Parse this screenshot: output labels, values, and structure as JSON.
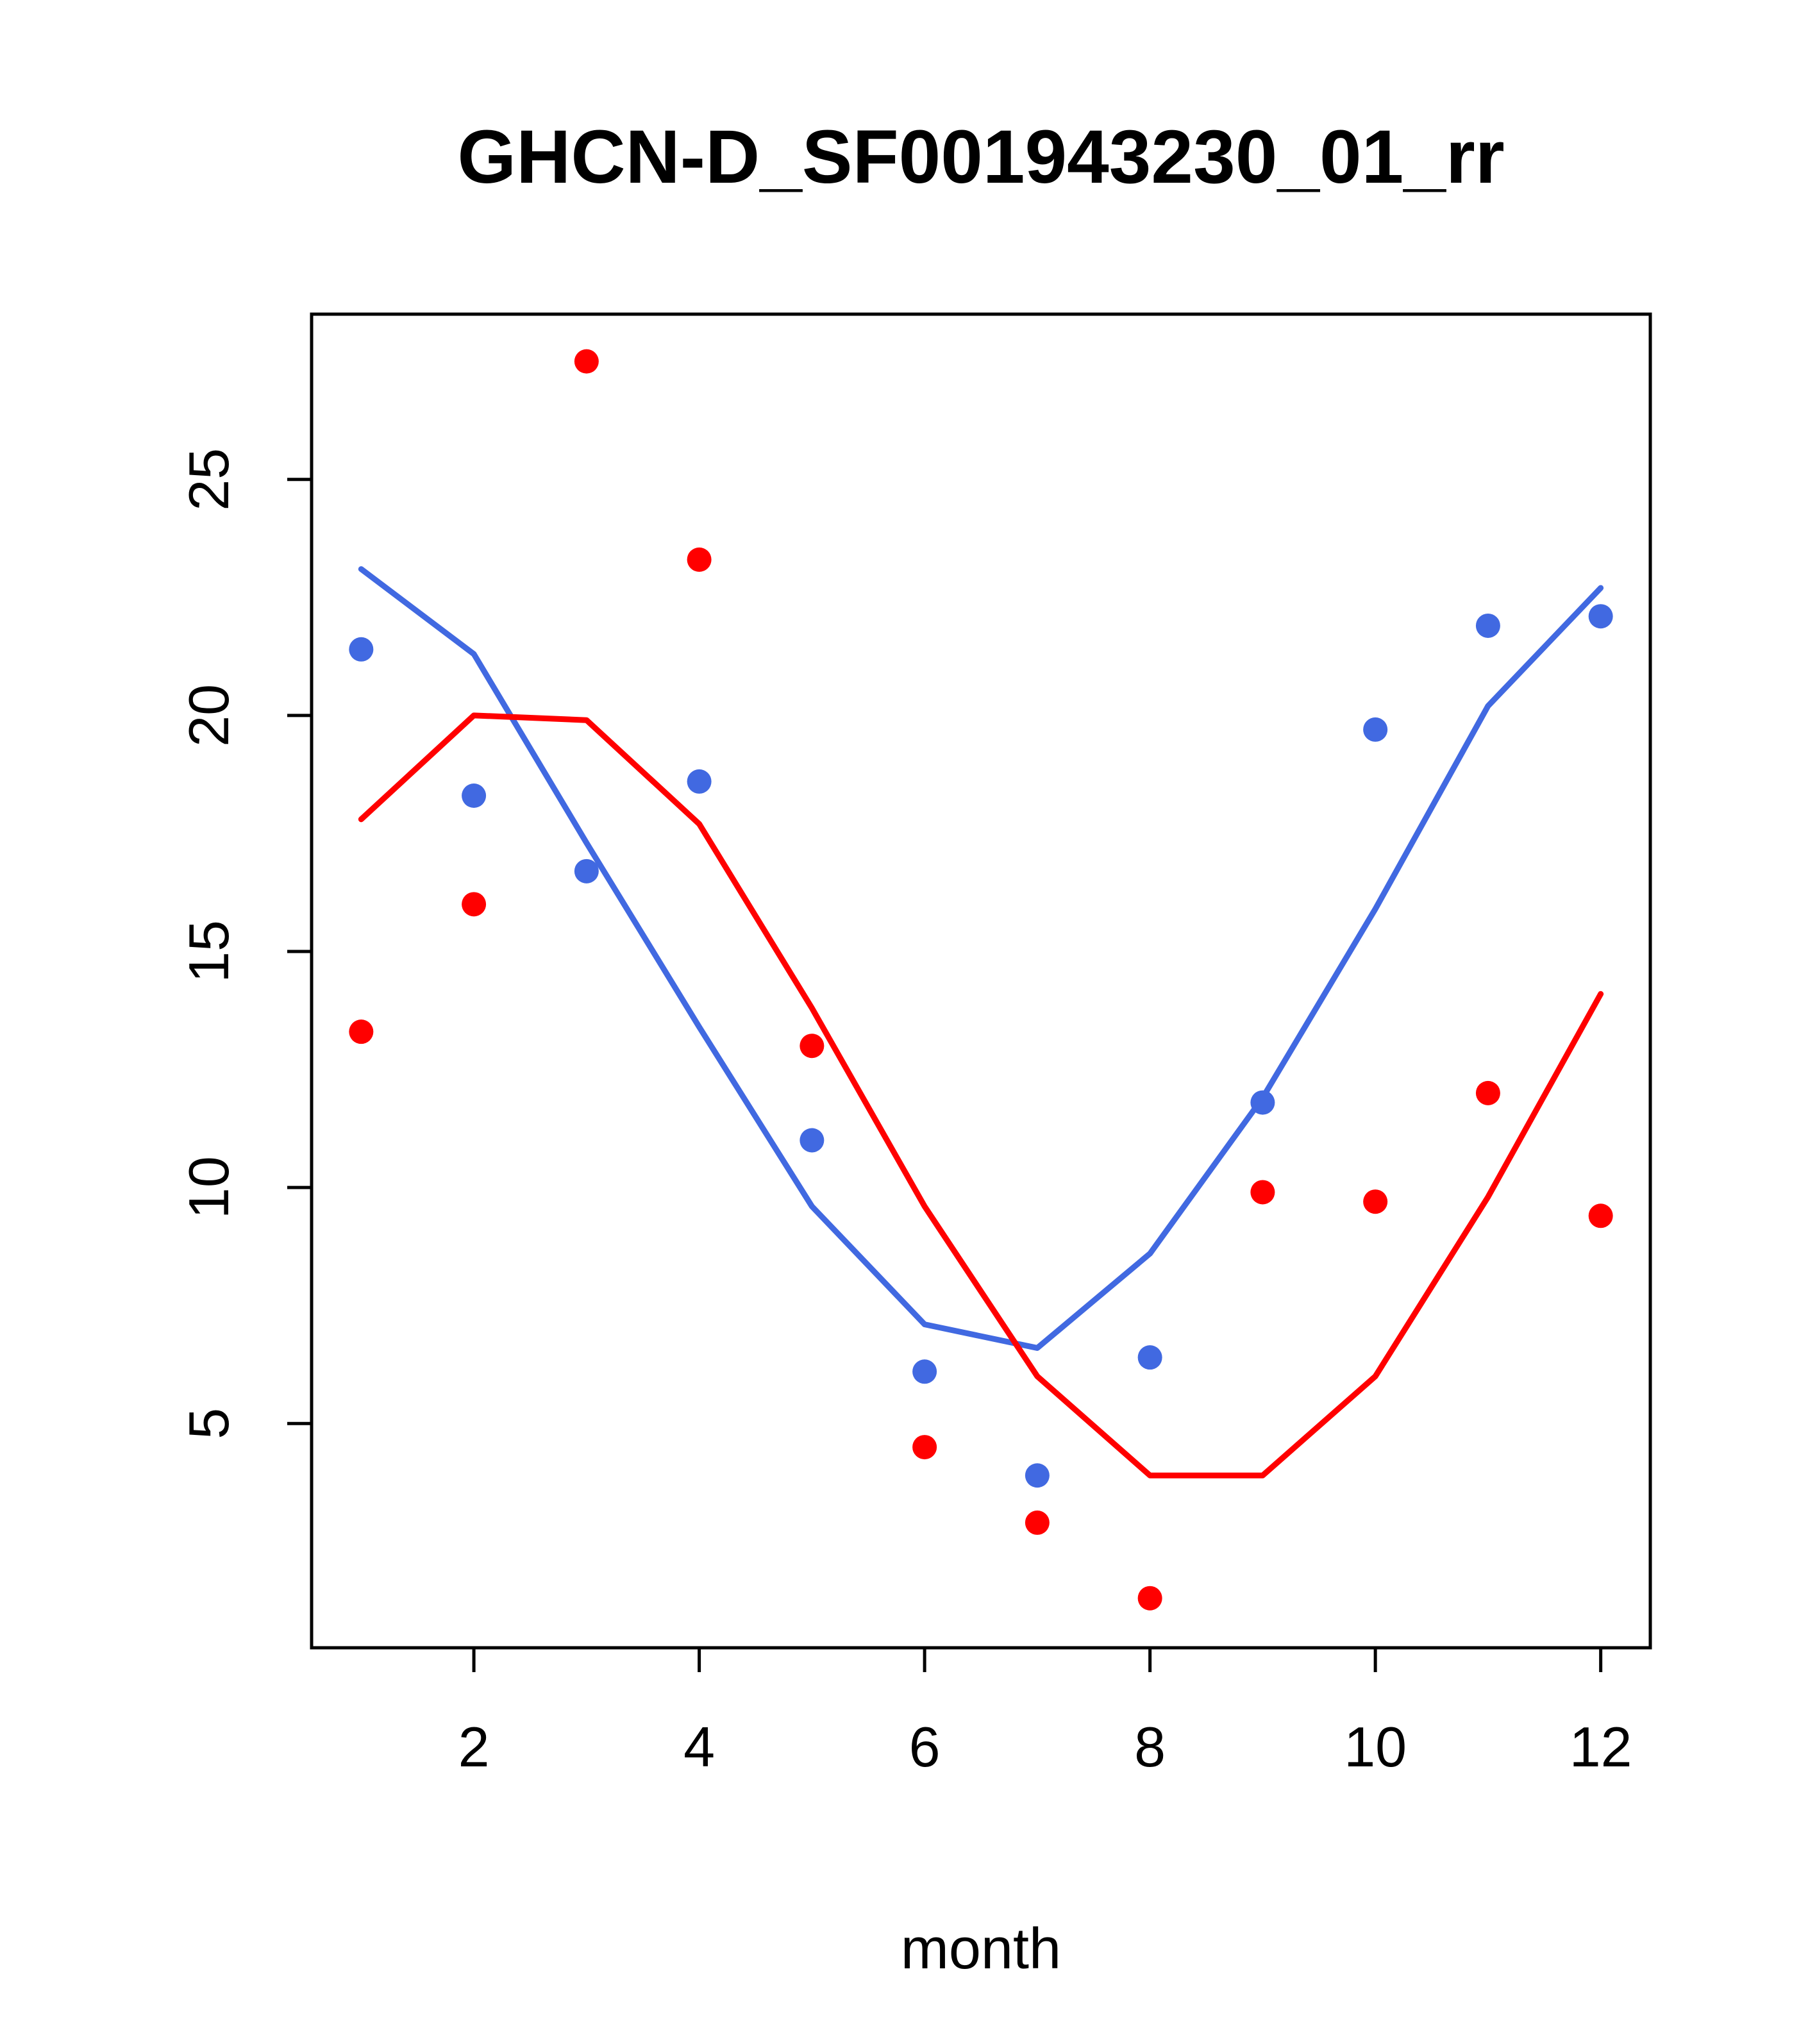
{
  "chart_data": {
    "type": "line",
    "title": "GHCN-D_SF001943230_01_rr",
    "xlabel": "month",
    "ylabel": "",
    "x": [
      1,
      2,
      3,
      4,
      5,
      6,
      7,
      8,
      9,
      10,
      11,
      12
    ],
    "xlim": [
      0.56,
      12.44
    ],
    "ylim": [
      0.25,
      28.5
    ],
    "xticks": [
      2,
      4,
      6,
      8,
      10,
      12
    ],
    "yticks": [
      5,
      10,
      15,
      20,
      25
    ],
    "grid": false,
    "legend": "none",
    "colors": {
      "blue": "#4169e1",
      "red": "#ff0000",
      "axis": "#000000"
    },
    "series": [
      {
        "name": "blue-smoothed-line",
        "draw": "line",
        "color": "#4169e1",
        "values": [
          23.1,
          21.3,
          17.3,
          13.4,
          9.6,
          7.1,
          6.6,
          8.6,
          11.9,
          15.9,
          20.2,
          22.7
        ]
      },
      {
        "name": "red-smoothed-line",
        "draw": "line",
        "color": "#ff0000",
        "values": [
          17.8,
          20.0,
          19.9,
          17.7,
          13.8,
          9.6,
          6.0,
          3.9,
          3.9,
          6.0,
          9.8,
          14.1
        ]
      },
      {
        "name": "blue-monthly-points",
        "draw": "scatter",
        "color": "#4169e1",
        "values": [
          21.4,
          18.3,
          16.7,
          18.6,
          11.0,
          6.1,
          3.9,
          6.4,
          11.8,
          19.7,
          21.9,
          22.1
        ]
      },
      {
        "name": "red-monthly-points",
        "draw": "scatter",
        "color": "#ff0000",
        "values": [
          13.3,
          16.0,
          27.5,
          23.3,
          13.0,
          4.5,
          2.9,
          1.3,
          9.9,
          9.7,
          12.0,
          9.4
        ]
      }
    ]
  }
}
